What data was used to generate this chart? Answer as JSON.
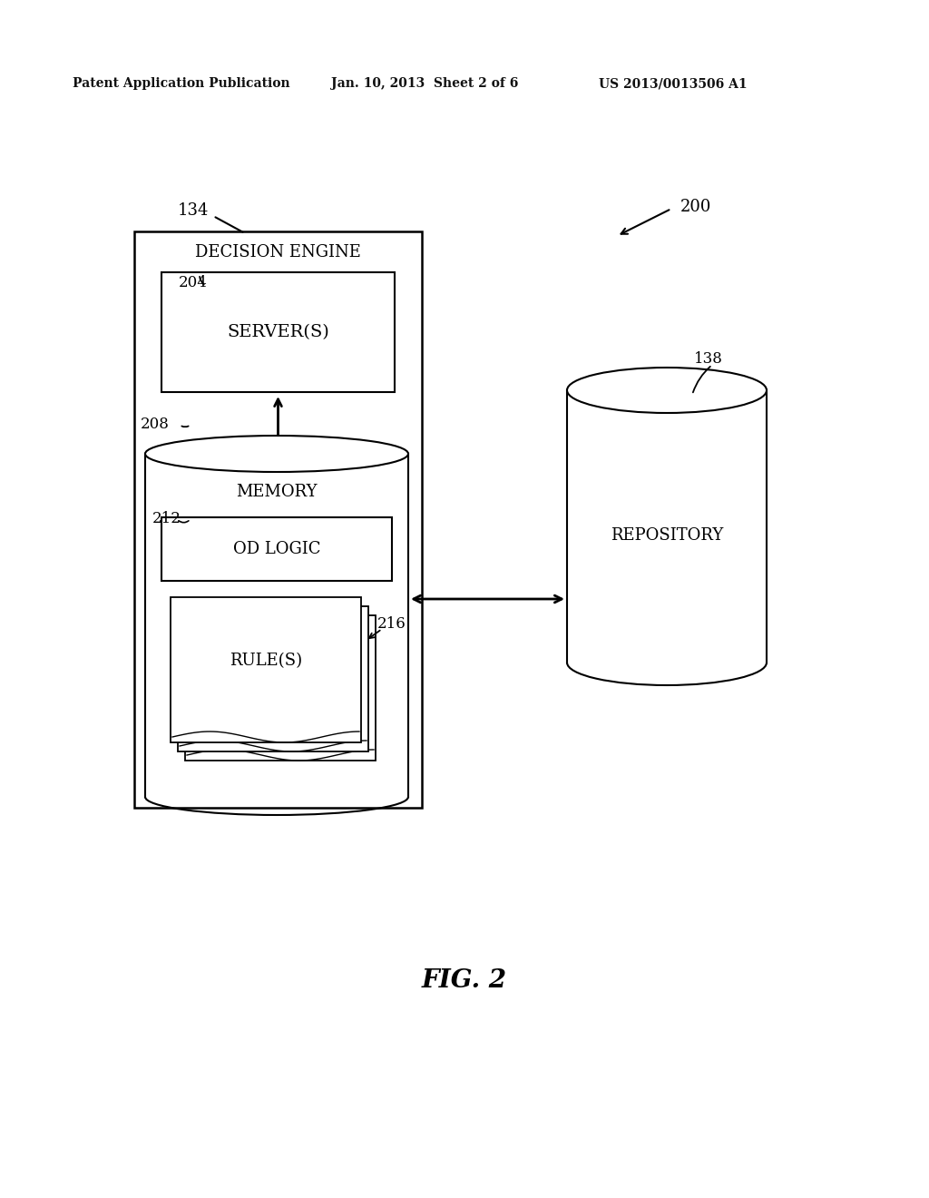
{
  "bg_color": "#ffffff",
  "header_text": "Patent Application Publication",
  "header_date": "Jan. 10, 2013  Sheet 2 of 6",
  "header_patent": "US 2013/0013506 A1",
  "fig_label": "FIG. 2",
  "label_200": "200",
  "label_134": "134",
  "label_204": "204",
  "label_208": "208",
  "label_212": "212",
  "label_216": "216",
  "label_138": "138",
  "text_decision_engine": "DECISION ENGINE",
  "text_servers": "SERVER(S)",
  "text_memory": "MEMORY",
  "text_od_logic": "OD LOGIC",
  "text_rules": "RULE(S)",
  "text_repository": "REPOSITORY"
}
